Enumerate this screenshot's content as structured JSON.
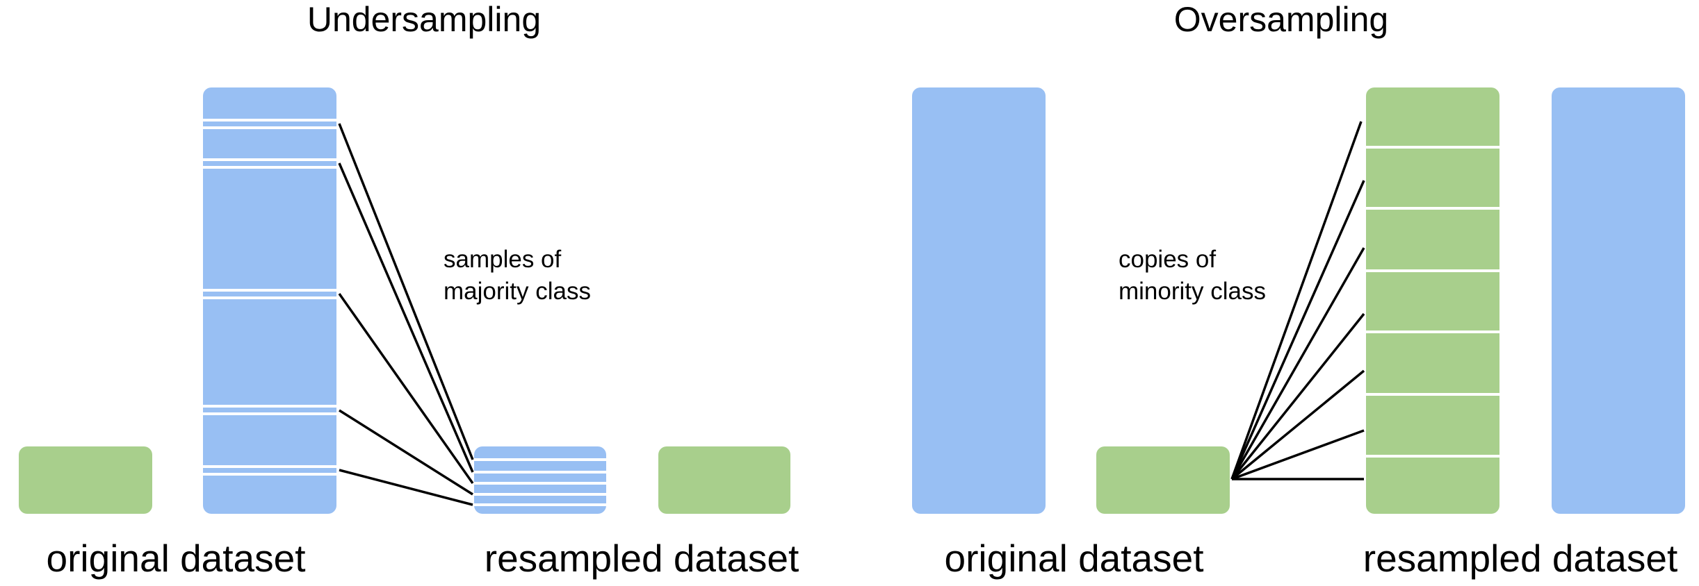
{
  "colors": {
    "majority_class": "#98BFF3",
    "minority_class": "#A8CF8C",
    "connector": "#000000",
    "divider": "#ffffff"
  },
  "undersampling": {
    "title": "Undersampling",
    "original_label": "original dataset",
    "resampled_label": "resampled dataset",
    "annotation": [
      "samples of",
      "majority class"
    ]
  },
  "oversampling": {
    "title": "Oversampling",
    "original_label": "original dataset",
    "resampled_label": "resampled dataset",
    "annotation": [
      "copies of",
      "minority class"
    ]
  }
}
